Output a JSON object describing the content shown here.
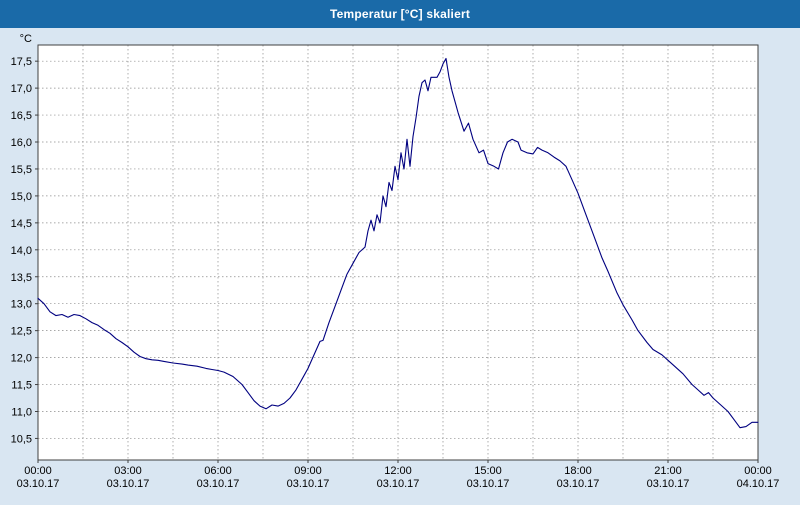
{
  "title": "Temperatur [°C] skaliert",
  "colors": {
    "header_bg": "#1a6aa8",
    "header_text": "#ffffff",
    "page_bg": "#d9e6f2",
    "plot_bg": "#ffffff",
    "line": "#000080",
    "grid": "#8c8c8c",
    "axis": "#404040",
    "text": "#000000"
  },
  "chart_data": {
    "type": "line",
    "title": "Temperatur [°C] skaliert",
    "ylabel": "°C",
    "xlabel": "",
    "ylim": [
      10.1,
      17.8
    ],
    "y_tick_start": 10.5,
    "y_tick_end": 17.5,
    "y_tick_step": 0.5,
    "xlim_hours": [
      0,
      24
    ],
    "minor_x_step_hours": 1.5,
    "grid": "dotted",
    "legend": "none",
    "x_ticks": [
      {
        "hour": 0,
        "time": "00:00",
        "date": "03.10.17"
      },
      {
        "hour": 3,
        "time": "03:00",
        "date": "03.10.17"
      },
      {
        "hour": 6,
        "time": "06:00",
        "date": "03.10.17"
      },
      {
        "hour": 9,
        "time": "09:00",
        "date": "03.10.17"
      },
      {
        "hour": 12,
        "time": "12:00",
        "date": "03.10.17"
      },
      {
        "hour": 15,
        "time": "15:00",
        "date": "03.10.17"
      },
      {
        "hour": 18,
        "time": "18:00",
        "date": "03.10.17"
      },
      {
        "hour": 21,
        "time": "21:00",
        "date": "03.10.17"
      },
      {
        "hour": 24,
        "time": "00:00",
        "date": "04.10.17"
      }
    ],
    "series": [
      {
        "name": "Temperatur [°C]",
        "color": "#000080",
        "points": [
          [
            0,
            13.1
          ],
          [
            0.2,
            13.0
          ],
          [
            0.4,
            12.85
          ],
          [
            0.6,
            12.78
          ],
          [
            0.8,
            12.8
          ],
          [
            1.0,
            12.75
          ],
          [
            1.2,
            12.8
          ],
          [
            1.4,
            12.78
          ],
          [
            1.6,
            12.72
          ],
          [
            1.8,
            12.65
          ],
          [
            2.0,
            12.6
          ],
          [
            2.2,
            12.52
          ],
          [
            2.4,
            12.45
          ],
          [
            2.6,
            12.35
          ],
          [
            2.8,
            12.28
          ],
          [
            3.0,
            12.2
          ],
          [
            3.2,
            12.1
          ],
          [
            3.4,
            12.02
          ],
          [
            3.6,
            11.98
          ],
          [
            3.8,
            11.96
          ],
          [
            4.0,
            11.95
          ],
          [
            4.2,
            11.93
          ],
          [
            4.5,
            11.9
          ],
          [
            4.8,
            11.88
          ],
          [
            5.0,
            11.86
          ],
          [
            5.3,
            11.84
          ],
          [
            5.6,
            11.8
          ],
          [
            5.8,
            11.78
          ],
          [
            6.0,
            11.76
          ],
          [
            6.2,
            11.73
          ],
          [
            6.5,
            11.65
          ],
          [
            6.8,
            11.5
          ],
          [
            7.0,
            11.35
          ],
          [
            7.2,
            11.2
          ],
          [
            7.4,
            11.1
          ],
          [
            7.6,
            11.05
          ],
          [
            7.8,
            11.12
          ],
          [
            8.0,
            11.1
          ],
          [
            8.2,
            11.15
          ],
          [
            8.4,
            11.25
          ],
          [
            8.6,
            11.4
          ],
          [
            8.8,
            11.6
          ],
          [
            9.0,
            11.8
          ],
          [
            9.2,
            12.05
          ],
          [
            9.4,
            12.3
          ],
          [
            9.5,
            12.32
          ],
          [
            9.7,
            12.65
          ],
          [
            9.9,
            12.95
          ],
          [
            10.1,
            13.25
          ],
          [
            10.3,
            13.55
          ],
          [
            10.5,
            13.75
          ],
          [
            10.7,
            13.95
          ],
          [
            10.9,
            14.05
          ],
          [
            11.0,
            14.35
          ],
          [
            11.1,
            14.55
          ],
          [
            11.2,
            14.35
          ],
          [
            11.3,
            14.65
          ],
          [
            11.4,
            14.5
          ],
          [
            11.5,
            15.0
          ],
          [
            11.6,
            14.8
          ],
          [
            11.7,
            15.25
          ],
          [
            11.8,
            15.1
          ],
          [
            11.9,
            15.55
          ],
          [
            12.0,
            15.3
          ],
          [
            12.1,
            15.8
          ],
          [
            12.2,
            15.5
          ],
          [
            12.3,
            16.05
          ],
          [
            12.4,
            15.55
          ],
          [
            12.5,
            16.1
          ],
          [
            12.6,
            16.45
          ],
          [
            12.7,
            16.85
          ],
          [
            12.8,
            17.1
          ],
          [
            12.9,
            17.15
          ],
          [
            13.0,
            16.95
          ],
          [
            13.1,
            17.2
          ],
          [
            13.3,
            17.2
          ],
          [
            13.4,
            17.3
          ],
          [
            13.5,
            17.45
          ],
          [
            13.6,
            17.55
          ],
          [
            13.7,
            17.2
          ],
          [
            13.8,
            16.95
          ],
          [
            14.0,
            16.55
          ],
          [
            14.2,
            16.2
          ],
          [
            14.35,
            16.35
          ],
          [
            14.5,
            16.05
          ],
          [
            14.7,
            15.8
          ],
          [
            14.85,
            15.85
          ],
          [
            15.0,
            15.6
          ],
          [
            15.2,
            15.55
          ],
          [
            15.35,
            15.5
          ],
          [
            15.5,
            15.8
          ],
          [
            15.65,
            16.0
          ],
          [
            15.8,
            16.05
          ],
          [
            16.0,
            16.0
          ],
          [
            16.1,
            15.85
          ],
          [
            16.3,
            15.8
          ],
          [
            16.5,
            15.78
          ],
          [
            16.65,
            15.9
          ],
          [
            16.8,
            15.85
          ],
          [
            17.0,
            15.8
          ],
          [
            17.2,
            15.72
          ],
          [
            17.4,
            15.65
          ],
          [
            17.6,
            15.55
          ],
          [
            17.8,
            15.3
          ],
          [
            18.0,
            15.05
          ],
          [
            18.2,
            14.75
          ],
          [
            18.5,
            14.3
          ],
          [
            18.8,
            13.85
          ],
          [
            19.0,
            13.6
          ],
          [
            19.3,
            13.2
          ],
          [
            19.5,
            12.98
          ],
          [
            19.8,
            12.7
          ],
          [
            20.0,
            12.5
          ],
          [
            20.3,
            12.28
          ],
          [
            20.5,
            12.15
          ],
          [
            20.8,
            12.05
          ],
          [
            21.0,
            11.95
          ],
          [
            21.2,
            11.85
          ],
          [
            21.5,
            11.7
          ],
          [
            21.8,
            11.5
          ],
          [
            22.0,
            11.4
          ],
          [
            22.2,
            11.3
          ],
          [
            22.35,
            11.35
          ],
          [
            22.5,
            11.25
          ],
          [
            22.7,
            11.15
          ],
          [
            23.0,
            11.0
          ],
          [
            23.2,
            10.85
          ],
          [
            23.4,
            10.7
          ],
          [
            23.6,
            10.72
          ],
          [
            23.8,
            10.8
          ],
          [
            24.0,
            10.8
          ]
        ]
      }
    ]
  }
}
